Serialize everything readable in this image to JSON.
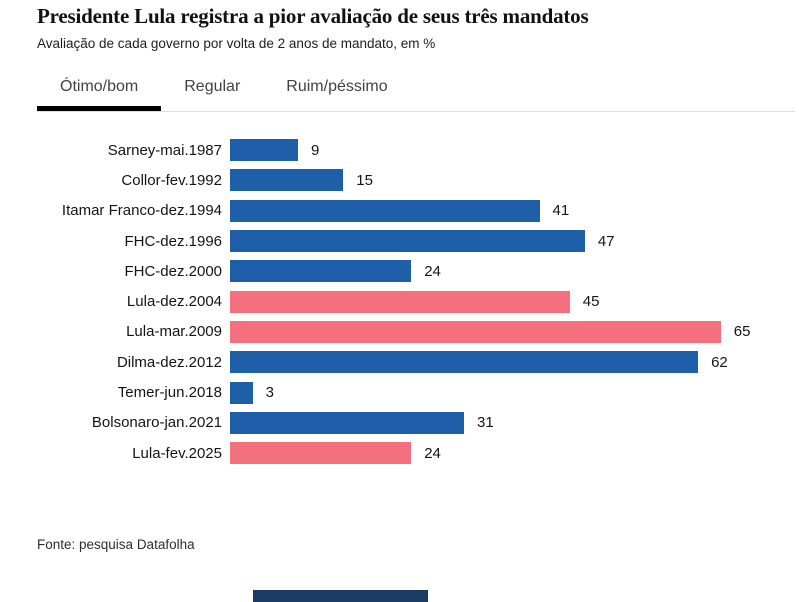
{
  "header": {
    "title": "Presidente Lula registra a pior avaliação de seus três mandatos",
    "subtitle": "Avaliação de cada governo por volta de 2 anos de mandato, em %"
  },
  "tabs": {
    "items": [
      {
        "label": "Ótimo/bom",
        "active": true
      },
      {
        "label": "Regular",
        "active": false
      },
      {
        "label": "Ruim/péssimo",
        "active": false
      }
    ]
  },
  "footer": {
    "source": "Fonte: pesquisa Datafolha"
  },
  "colors": {
    "bar_blue": "#1f5ea8",
    "bar_pink": "#f4707f",
    "active_tab_underline": "#000000",
    "tab_divider": "#dddddd",
    "bottom_bar": "#1b3a64"
  },
  "chart_data": {
    "type": "bar",
    "orientation": "horizontal",
    "title": "Presidente Lula registra a pior avaliação de seus três mandatos",
    "subtitle": "Avaliação de cada governo por volta de 2 anos de mandato, em %",
    "active_series": "Ótimo/bom",
    "series_options": [
      "Ótimo/bom",
      "Regular",
      "Ruim/péssimo"
    ],
    "categories": [
      "Sarney-mai.1987",
      "Collor-fev.1992",
      "Itamar Franco-dez.1994",
      "FHC-dez.1996",
      "FHC-dez.2000",
      "Lula-dez.2004",
      "Lula-mar.2009",
      "Dilma-dez.2012",
      "Temer-jun.2018",
      "Bolsonaro-jan.2021",
      "Lula-fev.2025"
    ],
    "values": [
      9,
      15,
      41,
      47,
      24,
      45,
      65,
      62,
      3,
      31,
      24
    ],
    "bar_color_keys": [
      "blue",
      "blue",
      "blue",
      "blue",
      "blue",
      "pink",
      "pink",
      "blue",
      "blue",
      "blue",
      "pink"
    ],
    "value_labels": true,
    "grid": false,
    "xlim": [
      0,
      70
    ],
    "source": "Fonte: pesquisa Datafolha"
  }
}
